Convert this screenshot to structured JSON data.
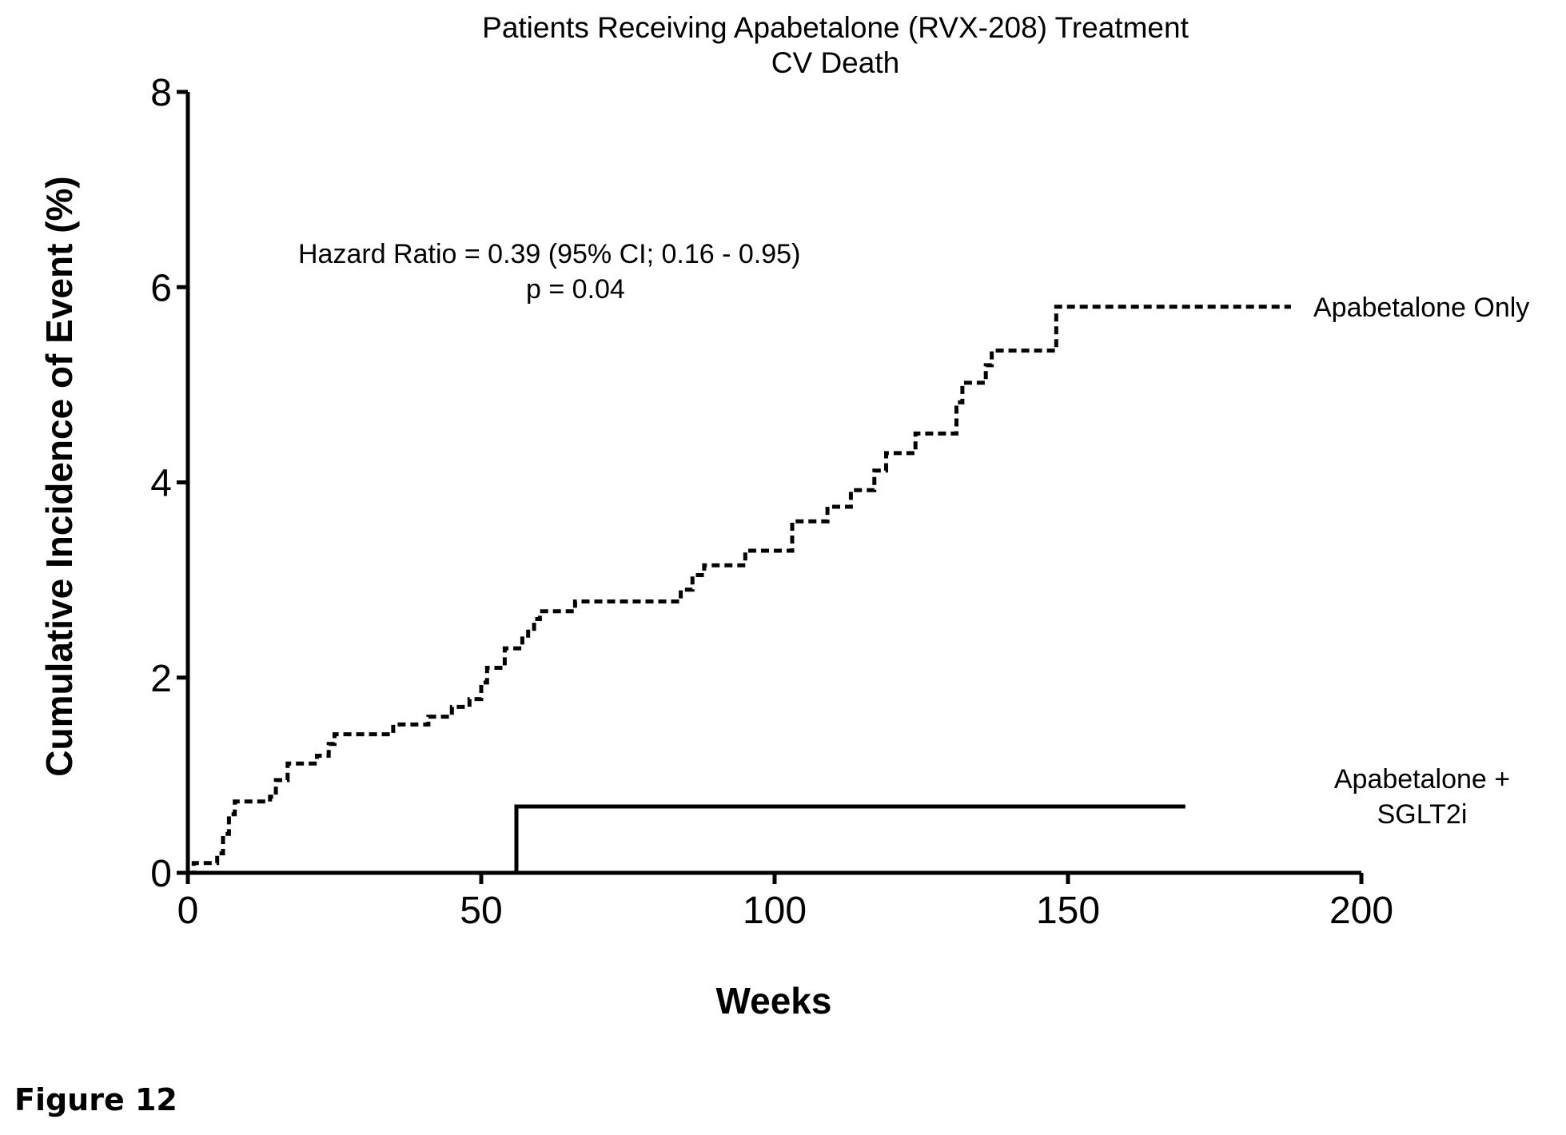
{
  "figure_label": "Figure 12",
  "chart_data": {
    "type": "line",
    "step": true,
    "title_lines": [
      "Patients Receiving Apabetalone  (RVX-208)  Treatment",
      "CV Death"
    ],
    "xlabel": "Weeks",
    "ylabel": "Cumulative Incidence of Event (%)",
    "xlim": [
      0,
      200
    ],
    "ylim": [
      0,
      8
    ],
    "xticks": [
      0,
      50,
      100,
      150,
      200
    ],
    "yticks": [
      0,
      2,
      4,
      6,
      8
    ],
    "grid": false,
    "annotation_lines": [
      "Hazard Ratio = 0.39 (95% CI;  0.16 - 0.95)",
      "p = 0.04"
    ],
    "series": [
      {
        "name": "Apabetalone Only",
        "line_style": "dashed",
        "color": "#000000",
        "points": [
          [
            0,
            0
          ],
          [
            1,
            0.1
          ],
          [
            5,
            0.2
          ],
          [
            6,
            0.4
          ],
          [
            7,
            0.6
          ],
          [
            8,
            0.73
          ],
          [
            14,
            0.78
          ],
          [
            15,
            0.95
          ],
          [
            17,
            1.12
          ],
          [
            22,
            1.2
          ],
          [
            24,
            1.32
          ],
          [
            25,
            1.42
          ],
          [
            35,
            1.52
          ],
          [
            41,
            1.6
          ],
          [
            45,
            1.7
          ],
          [
            48,
            1.78
          ],
          [
            50,
            1.95
          ],
          [
            51,
            2.1
          ],
          [
            54,
            2.3
          ],
          [
            57,
            2.4
          ],
          [
            58,
            2.5
          ],
          [
            59,
            2.6
          ],
          [
            60,
            2.68
          ],
          [
            66,
            2.78
          ],
          [
            84,
            2.9
          ],
          [
            86,
            3.05
          ],
          [
            88,
            3.15
          ],
          [
            95,
            3.3
          ],
          [
            103,
            3.6
          ],
          [
            109,
            3.75
          ],
          [
            113,
            3.92
          ],
          [
            117,
            4.12
          ],
          [
            119,
            4.3
          ],
          [
            124,
            4.5
          ],
          [
            131,
            4.82
          ],
          [
            132,
            5.02
          ],
          [
            136,
            5.2
          ],
          [
            137,
            5.35
          ],
          [
            148,
            5.8
          ],
          [
            188,
            5.8
          ]
        ]
      },
      {
        "name": "Apabetalone + SGLT2i",
        "name_lines": [
          "Apabetalone +",
          "SGLT2i"
        ],
        "line_style": "solid",
        "color": "#000000",
        "points": [
          [
            56,
            0
          ],
          [
            56,
            0.68
          ],
          [
            170,
            0.68
          ]
        ]
      }
    ]
  }
}
